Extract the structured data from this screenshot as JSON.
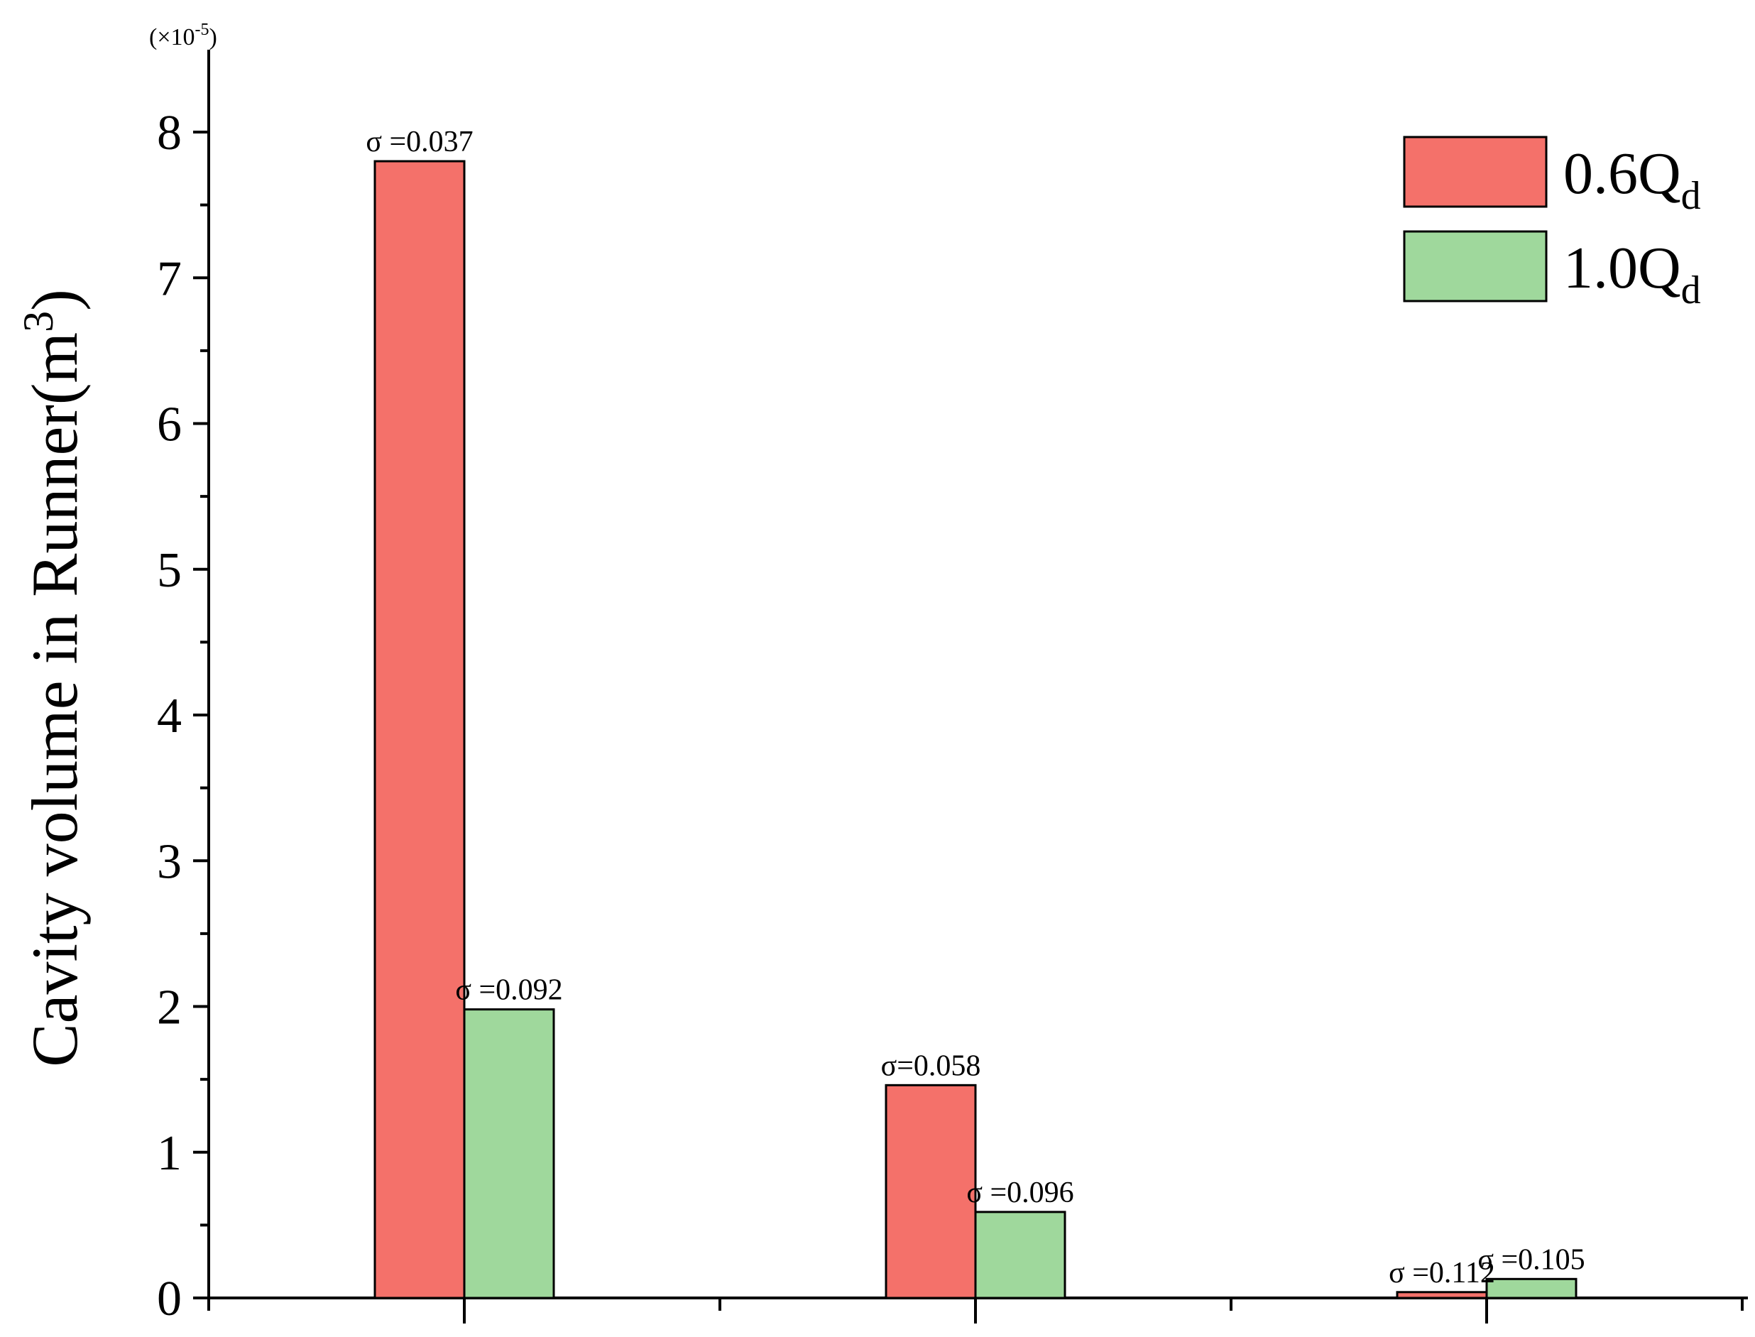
{
  "chart_data": {
    "type": "bar",
    "categories": [
      "",
      "",
      ""
    ],
    "series": [
      {
        "name": "0.6Q",
        "name_subscript": "d",
        "color": "#f4716a",
        "values": [
          7.8,
          1.46,
          0.04
        ],
        "labels": [
          "σ =0.037",
          "σ=0.058",
          "σ =0.112"
        ]
      },
      {
        "name": "1.0Q",
        "name_subscript": "d",
        "color": "#9fd89c",
        "values": [
          1.98,
          0.59,
          0.13
        ],
        "labels": [
          "σ =0.092",
          "σ =0.096",
          "σ =0.105"
        ]
      }
    ],
    "ylabel": "Cavity volume in Runner(m",
    "ylabel_superscript": "3",
    "ylabel_close": ")",
    "y_multiplier": "(×10",
    "y_multiplier_exponent": "-5",
    "y_multiplier_close": ")",
    "ylim": [
      0,
      8.4
    ],
    "yticks": [
      0,
      1,
      2,
      3,
      4,
      5,
      6,
      7,
      8
    ],
    "grid": false,
    "legend_position": "top-right"
  }
}
